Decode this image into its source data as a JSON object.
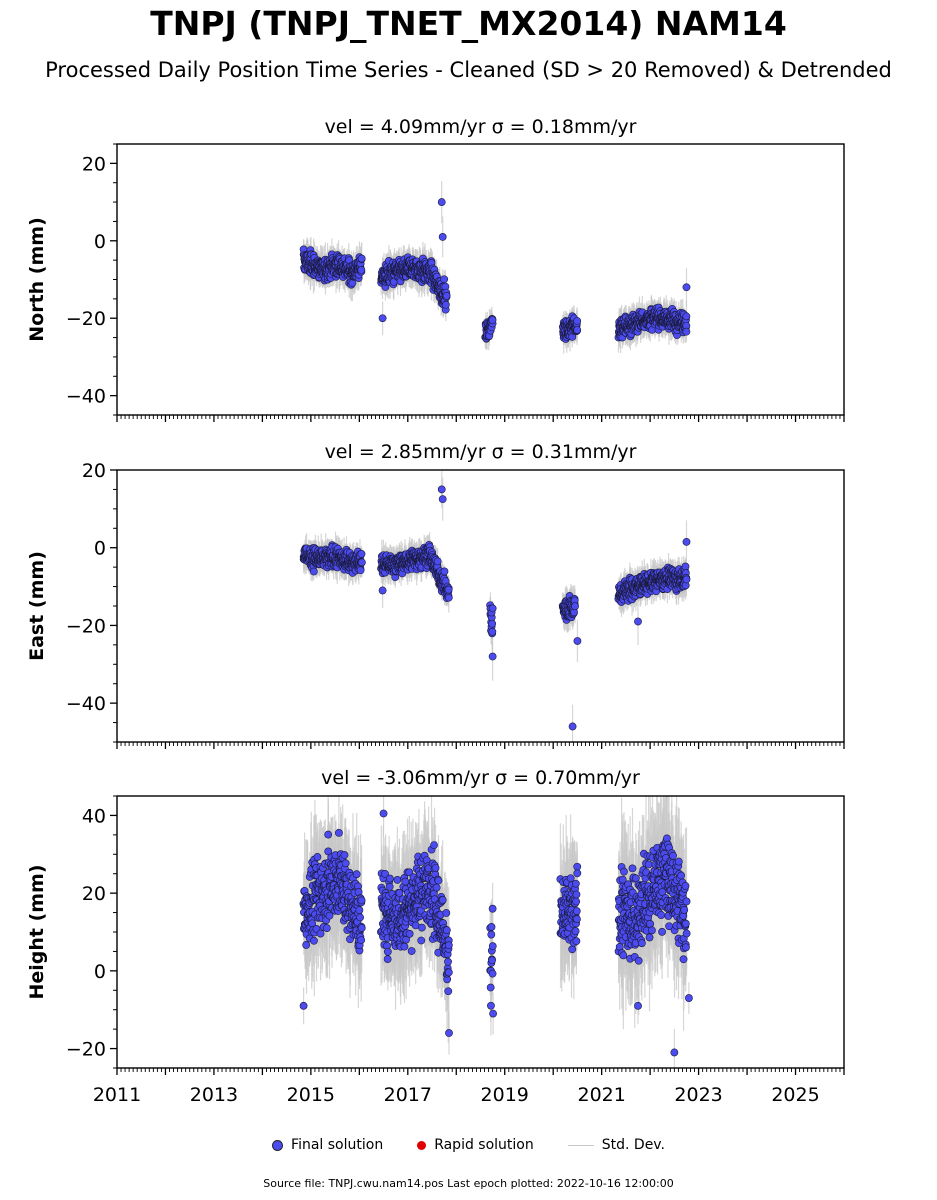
{
  "title": "TNPJ (TNPJ_TNET_MX2014) NAM14",
  "subtitle": "Processed Daily Position Time Series - Cleaned (SD > 20 Removed) & Detrended",
  "legend": {
    "final": "Final solution",
    "rapid": "Rapid solution",
    "stddev": "Std. Dev.",
    "final_color": "#4b4bf0",
    "rapid_color": "#e00000",
    "stddev_color": "#c8c8c8"
  },
  "footer": "Source file: TNPJ.cwu.nam14.pos  Last epoch plotted: 2022-10-16 12:00:00",
  "chart_data": [
    {
      "type": "scatter",
      "title": "vel = 4.09mm/yr   σ = 0.18mm/yr",
      "ylabel": "North (mm)",
      "xlim": [
        2011,
        2026
      ],
      "ylim": [
        -45,
        25
      ],
      "yticks": [
        "−40",
        "−20",
        "0",
        "20"
      ],
      "ytick_values": [
        -40,
        -20,
        0,
        20
      ],
      "segments": [
        {
          "x": [
            2014.85,
            2015.25,
            2015.5,
            2015.8,
            2016.05
          ],
          "y": [
            -5,
            -7.5,
            -6,
            -8,
            -7
          ],
          "spread": 2.0
        },
        {
          "x": [
            2016.45,
            2016.8,
            2017.1,
            2017.45,
            2017.8
          ],
          "y": [
            -9,
            -8,
            -7,
            -8,
            -15
          ],
          "spread": 2.0
        },
        {
          "x": [
            2018.6,
            2018.75
          ],
          "y": [
            -24,
            -21
          ],
          "spread": 1.5
        },
        {
          "x": [
            2020.2,
            2020.5
          ],
          "y": [
            -23,
            -22
          ],
          "spread": 1.8
        },
        {
          "x": [
            2021.35,
            2021.7,
            2022.0,
            2022.3,
            2022.75
          ],
          "y": [
            -23,
            -21,
            -20,
            -20,
            -21
          ],
          "spread": 1.8
        }
      ],
      "outliers": [
        {
          "x": 2017.7,
          "y": 10
        },
        {
          "x": 2016.48,
          "y": -20
        },
        {
          "x": 2017.72,
          "y": 1
        },
        {
          "x": 2022.75,
          "y": -12
        }
      ]
    },
    {
      "type": "scatter",
      "title": "vel = 2.85mm/yr   σ = 0.31mm/yr",
      "ylabel": "East (mm)",
      "xlim": [
        2011,
        2026
      ],
      "ylim": [
        -50,
        20
      ],
      "yticks": [
        "−40",
        "−20",
        "0",
        "20"
      ],
      "ytick_values": [
        -40,
        -20,
        0,
        20
      ],
      "segments": [
        {
          "x": [
            2014.85,
            2015.25,
            2015.5,
            2015.8,
            2016.05
          ],
          "y": [
            -2,
            -3,
            -2.5,
            -3.5,
            -4
          ],
          "spread": 1.8
        },
        {
          "x": [
            2016.45,
            2016.8,
            2017.1,
            2017.45,
            2017.85
          ],
          "y": [
            -4,
            -4.5,
            -3,
            -2,
            -12
          ],
          "spread": 1.8
        },
        {
          "x": [
            2018.7,
            2018.75
          ],
          "y": [
            -18,
            -20
          ],
          "spread": 2.5
        },
        {
          "x": [
            2020.2,
            2020.45
          ],
          "y": [
            -16,
            -15
          ],
          "spread": 2.0
        },
        {
          "x": [
            2021.35,
            2021.7,
            2022.0,
            2022.3,
            2022.75
          ],
          "y": [
            -12,
            -10,
            -9,
            -8,
            -8
          ],
          "spread": 1.8
        }
      ],
      "outliers": [
        {
          "x": 2017.7,
          "y": 15
        },
        {
          "x": 2017.72,
          "y": 12.5
        },
        {
          "x": 2018.75,
          "y": -28
        },
        {
          "x": 2020.4,
          "y": -46
        },
        {
          "x": 2020.5,
          "y": -24
        },
        {
          "x": 2022.75,
          "y": 1.5
        },
        {
          "x": 2016.48,
          "y": -11
        },
        {
          "x": 2021.75,
          "y": -19
        }
      ]
    },
    {
      "type": "scatter",
      "title": "vel = -3.06mm/yr   σ = 0.70mm/yr",
      "ylabel": "Height (mm)",
      "xlim": [
        2011,
        2026
      ],
      "ylim": [
        -25,
        45
      ],
      "yticks": [
        "−20",
        "0",
        "20",
        "40"
      ],
      "ytick_values": [
        -20,
        0,
        20,
        40
      ],
      "segments": [
        {
          "x": [
            2014.85,
            2015.2,
            2015.5,
            2015.8,
            2016.05
          ],
          "y": [
            15,
            20,
            24,
            18,
            12
          ],
          "spread": 7
        },
        {
          "x": [
            2016.45,
            2016.8,
            2017.1,
            2017.45,
            2017.85
          ],
          "y": [
            15,
            14,
            18,
            22,
            5
          ],
          "spread": 7
        },
        {
          "x": [
            2018.7,
            2018.75
          ],
          "y": [
            3,
            3
          ],
          "spread": 6
        },
        {
          "x": [
            2020.15,
            2020.5
          ],
          "y": [
            15,
            14
          ],
          "spread": 7
        },
        {
          "x": [
            2021.35,
            2021.7,
            2022.0,
            2022.3,
            2022.75
          ],
          "y": [
            15,
            14,
            20,
            25,
            14
          ],
          "spread": 8
        }
      ],
      "outliers": [
        {
          "x": 2014.85,
          "y": -9
        },
        {
          "x": 2016.5,
          "y": 40.5
        },
        {
          "x": 2017.85,
          "y": -16
        },
        {
          "x": 2018.75,
          "y": 16
        },
        {
          "x": 2018.76,
          "y": -11
        },
        {
          "x": 2022.5,
          "y": -21
        },
        {
          "x": 2022.8,
          "y": -7
        },
        {
          "x": 2021.75,
          "y": -9
        }
      ],
      "xticks": [
        "2011",
        "2013",
        "2015",
        "2017",
        "2019",
        "2021",
        "2023",
        "2025"
      ],
      "xtick_values": [
        2011,
        2013,
        2015,
        2017,
        2019,
        2021,
        2023,
        2025
      ]
    }
  ]
}
